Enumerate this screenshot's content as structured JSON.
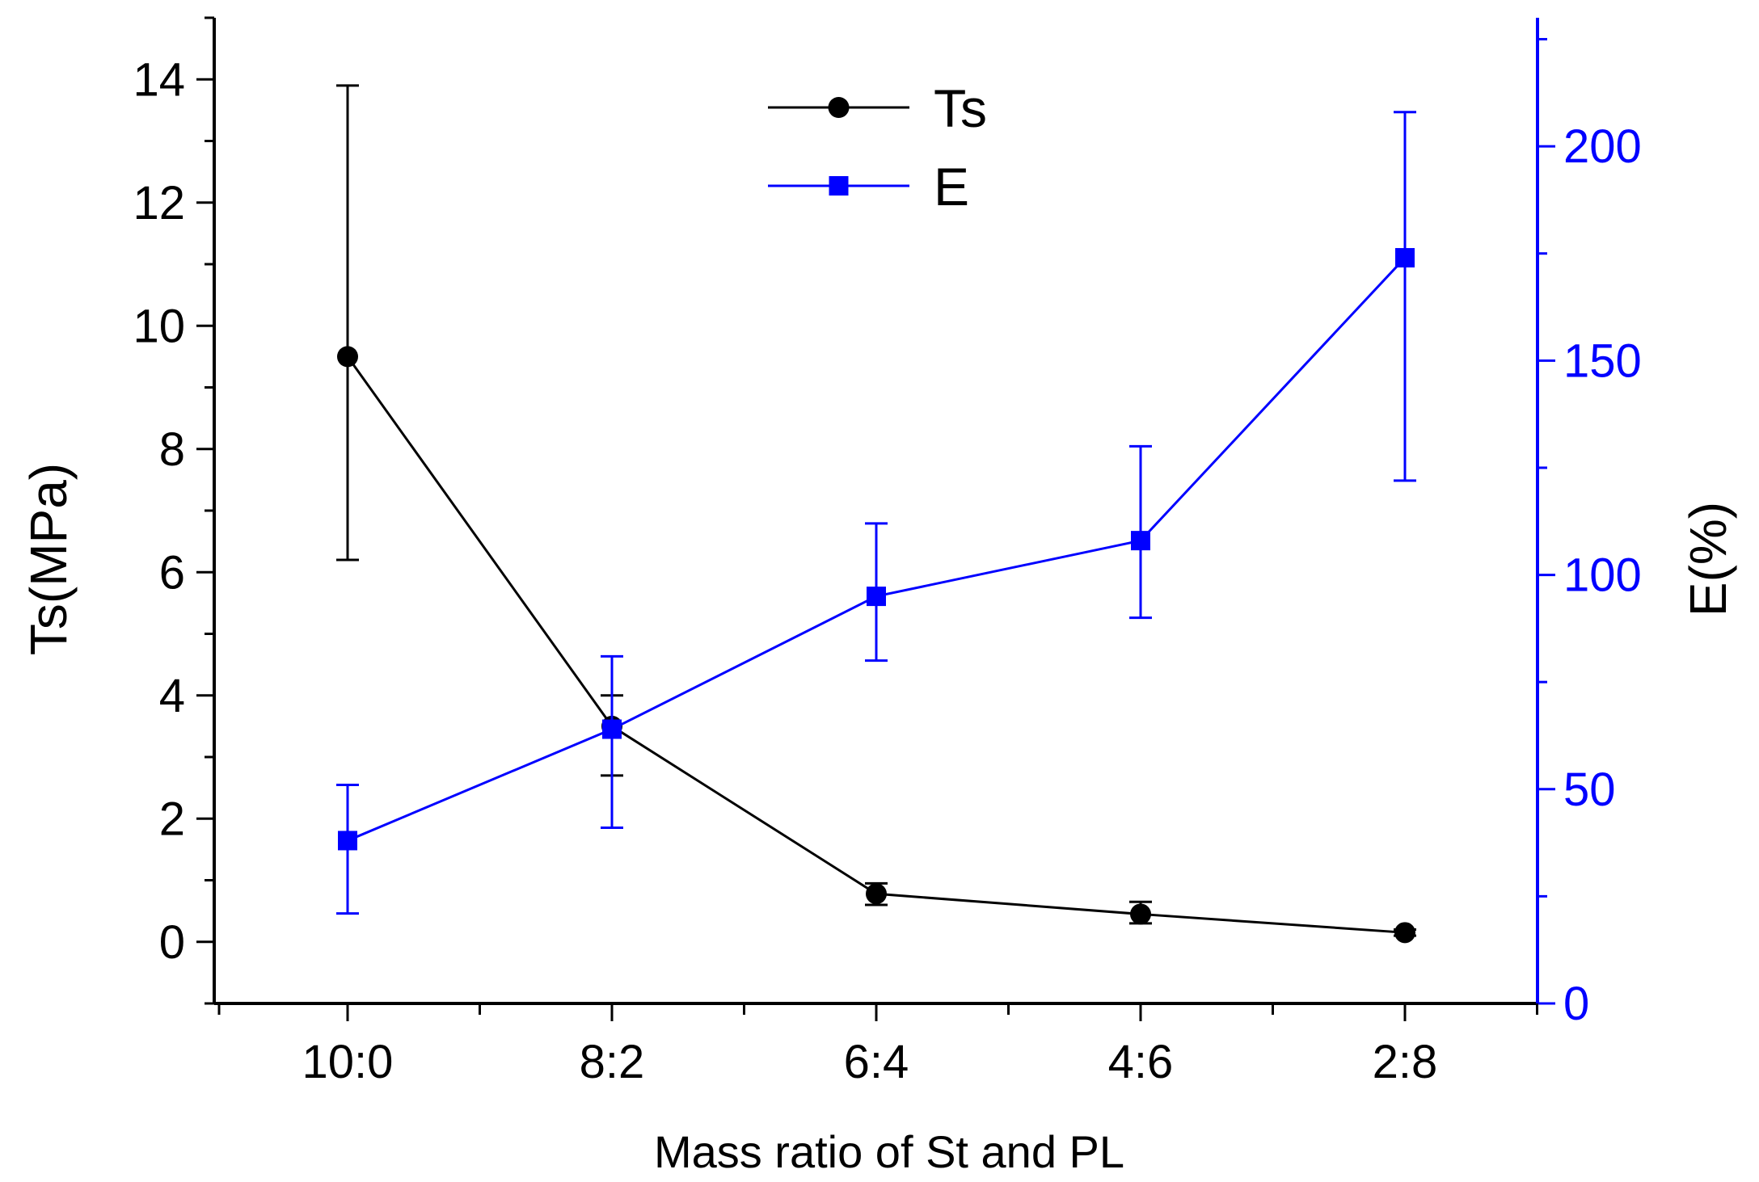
{
  "chart_data": {
    "type": "line",
    "title": "",
    "xlabel": "Mass ratio of St and PL",
    "ylabel": "Ts(MPa)",
    "y2label": "E(%)",
    "categories": [
      "10:0",
      "8:2",
      "6:4",
      "4:6",
      "2:8"
    ],
    "ylim": [
      -1,
      15
    ],
    "y2lim": [
      0,
      230
    ],
    "yticks": [
      "0",
      "2",
      "4",
      "6",
      "8",
      "10",
      "12",
      "14"
    ],
    "y2ticks": [
      "0",
      "50",
      "100",
      "150",
      "200"
    ],
    "legend_position": "top-center",
    "grid": false,
    "series": [
      {
        "name": "Ts",
        "axis": "left",
        "color": "#000000",
        "marker": "circle",
        "values": [
          9.5,
          3.5,
          0.78,
          0.45,
          0.15
        ],
        "err_low": [
          6.2,
          2.7,
          0.6,
          0.3,
          0.1
        ],
        "err_high": [
          13.9,
          4.0,
          0.95,
          0.65,
          0.2
        ]
      },
      {
        "name": "E",
        "axis": "right",
        "color": "#0000ff",
        "marker": "square",
        "values": [
          38,
          64,
          95,
          108,
          174
        ],
        "err_low": [
          21,
          41,
          80,
          90,
          122
        ],
        "err_high": [
          51,
          81,
          112,
          130,
          208
        ]
      }
    ]
  }
}
